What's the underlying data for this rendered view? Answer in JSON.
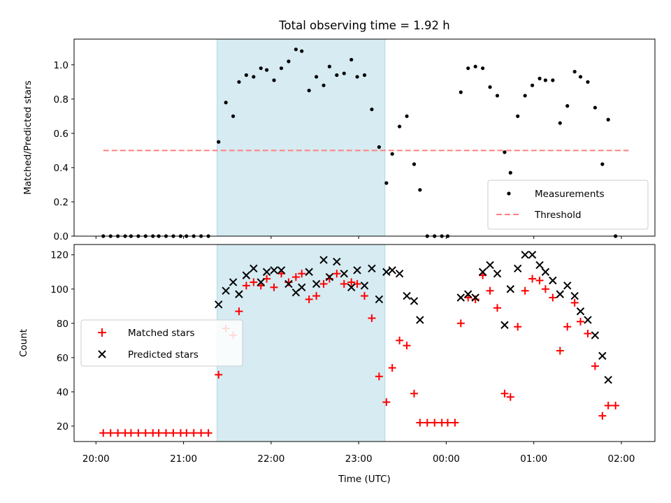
{
  "chart_data": [
    {
      "type": "scatter",
      "title": "Total observing time = 1.92 h",
      "xlabel": "",
      "ylabel": "Matched/Predicted stars",
      "xlim": [
        "19:45",
        "02:23"
      ],
      "ylim": [
        0,
        1.15
      ],
      "yticks": [
        "0.0",
        "0.2",
        "0.4",
        "0.6",
        "0.8",
        "1.0"
      ],
      "shaded_interval": [
        "21:23",
        "23:18"
      ],
      "legend_position": "lower right",
      "legend": [
        "Measurements",
        "Threshold"
      ],
      "threshold": {
        "name": "Threshold",
        "value": 0.5,
        "x_range": [
          "20:05",
          "02:05"
        ],
        "color": "#ff8080"
      },
      "measurements": {
        "name": "Measurements",
        "color": "#000000",
        "points": [
          [
            "20:05",
            0.0
          ],
          [
            "20:10",
            0.0
          ],
          [
            "20:15",
            0.0
          ],
          [
            "20:20",
            0.0
          ],
          [
            "20:24",
            0.0
          ],
          [
            "20:29",
            0.0
          ],
          [
            "20:34",
            0.0
          ],
          [
            "20:39",
            0.0
          ],
          [
            "20:43",
            0.0
          ],
          [
            "20:48",
            0.0
          ],
          [
            "20:53",
            0.0
          ],
          [
            "20:58",
            0.0
          ],
          [
            "21:02",
            0.0
          ],
          [
            "21:07",
            0.0
          ],
          [
            "21:12",
            0.0
          ],
          [
            "21:17",
            0.0
          ],
          [
            "21:24",
            0.55
          ],
          [
            "21:29",
            0.78
          ],
          [
            "21:34",
            0.7
          ],
          [
            "21:38",
            0.9
          ],
          [
            "21:43",
            0.94
          ],
          [
            "21:48",
            0.93
          ],
          [
            "21:53",
            0.98
          ],
          [
            "21:57",
            0.97
          ],
          [
            "22:02",
            0.91
          ],
          [
            "22:07",
            0.98
          ],
          [
            "22:12",
            1.02
          ],
          [
            "22:17",
            1.09
          ],
          [
            "22:21",
            1.08
          ],
          [
            "22:26",
            0.85
          ],
          [
            "22:31",
            0.93
          ],
          [
            "22:36",
            0.88
          ],
          [
            "22:40",
            0.99
          ],
          [
            "22:45",
            0.94
          ],
          [
            "22:50",
            0.95
          ],
          [
            "22:55",
            1.03
          ],
          [
            "22:59",
            0.93
          ],
          [
            "23:04",
            0.94
          ],
          [
            "23:09",
            0.74
          ],
          [
            "23:14",
            0.52
          ],
          [
            "23:19",
            0.31
          ],
          [
            "23:23",
            0.48
          ],
          [
            "23:28",
            0.64
          ],
          [
            "23:33",
            0.7
          ],
          [
            "23:38",
            0.42
          ],
          [
            "23:42",
            0.27
          ],
          [
            "23:47",
            0.0
          ],
          [
            "23:52",
            0.0
          ],
          [
            "23:57",
            0.0
          ],
          [
            "00:01",
            0.0
          ],
          [
            "00:10",
            0.84
          ],
          [
            "00:15",
            0.98
          ],
          [
            "00:20",
            0.99
          ],
          [
            "00:25",
            0.98
          ],
          [
            "00:30",
            0.87
          ],
          [
            "00:35",
            0.82
          ],
          [
            "00:40",
            0.49
          ],
          [
            "00:44",
            0.37
          ],
          [
            "00:49",
            0.7
          ],
          [
            "00:54",
            0.82
          ],
          [
            "00:59",
            0.88
          ],
          [
            "01:04",
            0.92
          ],
          [
            "01:08",
            0.91
          ],
          [
            "01:13",
            0.91
          ],
          [
            "01:18",
            0.66
          ],
          [
            "01:23",
            0.76
          ],
          [
            "01:28",
            0.96
          ],
          [
            "01:32",
            0.93
          ],
          [
            "01:37",
            0.9
          ],
          [
            "01:42",
            0.75
          ],
          [
            "01:47",
            0.42
          ],
          [
            "01:51",
            0.68
          ],
          [
            "01:56",
            0.0
          ]
        ]
      }
    },
    {
      "type": "scatter",
      "title": "",
      "xlabel": "Time (UTC)",
      "ylabel": "Count",
      "xlim": [
        "19:45",
        "02:23"
      ],
      "ylim": [
        11,
        126
      ],
      "yticks": [
        "20",
        "40",
        "60",
        "80",
        "100",
        "120"
      ],
      "xticks": [
        "20:00",
        "21:00",
        "22:00",
        "23:00",
        "00:00",
        "01:00",
        "02:00"
      ],
      "shaded_interval": [
        "21:23",
        "23:18"
      ],
      "legend_position": "center left",
      "legend": [
        "Matched stars",
        "Predicted stars"
      ],
      "series": [
        {
          "name": "Matched stars",
          "marker": "+",
          "color": "#ff0000",
          "points": [
            [
              "20:05",
              16
            ],
            [
              "20:10",
              16
            ],
            [
              "20:15",
              16
            ],
            [
              "20:20",
              16
            ],
            [
              "20:24",
              16
            ],
            [
              "20:29",
              16
            ],
            [
              "20:34",
              16
            ],
            [
              "20:39",
              16
            ],
            [
              "20:43",
              16
            ],
            [
              "20:48",
              16
            ],
            [
              "20:53",
              16
            ],
            [
              "20:58",
              16
            ],
            [
              "21:02",
              16
            ],
            [
              "21:07",
              16
            ],
            [
              "21:12",
              16
            ],
            [
              "21:17",
              16
            ],
            [
              "21:24",
              50
            ],
            [
              "21:29",
              77
            ],
            [
              "21:34",
              73
            ],
            [
              "21:38",
              87
            ],
            [
              "21:43",
              102
            ],
            [
              "21:48",
              104
            ],
            [
              "21:53",
              102
            ],
            [
              "21:57",
              106
            ],
            [
              "22:02",
              101
            ],
            [
              "22:07",
              109
            ],
            [
              "22:12",
              104
            ],
            [
              "22:17",
              107
            ],
            [
              "22:21",
              109
            ],
            [
              "22:26",
              94
            ],
            [
              "22:31",
              96
            ],
            [
              "22:36",
              103
            ],
            [
              "22:40",
              106
            ],
            [
              "22:45",
              109
            ],
            [
              "22:50",
              103
            ],
            [
              "22:55",
              104
            ],
            [
              "22:59",
              103
            ],
            [
              "23:04",
              96
            ],
            [
              "23:09",
              83
            ],
            [
              "23:14",
              49
            ],
            [
              "23:19",
              34
            ],
            [
              "23:23",
              54
            ],
            [
              "23:28",
              70
            ],
            [
              "23:33",
              67
            ],
            [
              "23:38",
              39
            ],
            [
              "23:42",
              22
            ],
            [
              "23:47",
              22
            ],
            [
              "23:52",
              22
            ],
            [
              "23:57",
              22
            ],
            [
              "00:01",
              22
            ],
            [
              "00:06",
              22
            ],
            [
              "00:10",
              80
            ],
            [
              "00:15",
              95
            ],
            [
              "00:20",
              94
            ],
            [
              "00:25",
              108
            ],
            [
              "00:30",
              99
            ],
            [
              "00:35",
              89
            ],
            [
              "00:40",
              39
            ],
            [
              "00:44",
              37
            ],
            [
              "00:49",
              78
            ],
            [
              "00:54",
              99
            ],
            [
              "00:59",
              106
            ],
            [
              "01:04",
              105
            ],
            [
              "01:08",
              100
            ],
            [
              "01:13",
              95
            ],
            [
              "01:18",
              64
            ],
            [
              "01:23",
              78
            ],
            [
              "01:28",
              92
            ],
            [
              "01:32",
              81
            ],
            [
              "01:37",
              74
            ],
            [
              "01:42",
              55
            ],
            [
              "01:47",
              26
            ],
            [
              "01:51",
              32
            ],
            [
              "01:56",
              32
            ]
          ]
        },
        {
          "name": "Predicted stars",
          "marker": "x",
          "color": "#000000",
          "points": [
            [
              "21:24",
              91
            ],
            [
              "21:29",
              99
            ],
            [
              "21:34",
              104
            ],
            [
              "21:38",
              97
            ],
            [
              "21:43",
              108
            ],
            [
              "21:48",
              112
            ],
            [
              "21:53",
              104
            ],
            [
              "21:57",
              110
            ],
            [
              "22:02",
              111
            ],
            [
              "22:07",
              111
            ],
            [
              "22:12",
              103
            ],
            [
              "22:17",
              98
            ],
            [
              "22:21",
              101
            ],
            [
              "22:26",
              110
            ],
            [
              "22:31",
              103
            ],
            [
              "22:36",
              117
            ],
            [
              "22:40",
              107
            ],
            [
              "22:45",
              116
            ],
            [
              "22:50",
              109
            ],
            [
              "22:55",
              101
            ],
            [
              "22:59",
              111
            ],
            [
              "23:04",
              102
            ],
            [
              "23:09",
              112
            ],
            [
              "23:14",
              94
            ],
            [
              "23:19",
              110
            ],
            [
              "23:23",
              111
            ],
            [
              "23:28",
              109
            ],
            [
              "23:33",
              96
            ],
            [
              "23:38",
              93
            ],
            [
              "23:42",
              82
            ],
            [
              "00:10",
              95
            ],
            [
              "00:15",
              97
            ],
            [
              "00:20",
              95
            ],
            [
              "00:25",
              110
            ],
            [
              "00:30",
              114
            ],
            [
              "00:35",
              109
            ],
            [
              "00:40",
              79
            ],
            [
              "00:44",
              100
            ],
            [
              "00:49",
              112
            ],
            [
              "00:54",
              120
            ],
            [
              "00:59",
              120
            ],
            [
              "01:04",
              114
            ],
            [
              "01:08",
              110
            ],
            [
              "01:13",
              105
            ],
            [
              "01:18",
              97
            ],
            [
              "01:23",
              102
            ],
            [
              "01:28",
              96
            ],
            [
              "01:32",
              87
            ],
            [
              "01:37",
              82
            ],
            [
              "01:42",
              73
            ],
            [
              "01:47",
              61
            ],
            [
              "01:51",
              47
            ]
          ]
        }
      ]
    }
  ]
}
